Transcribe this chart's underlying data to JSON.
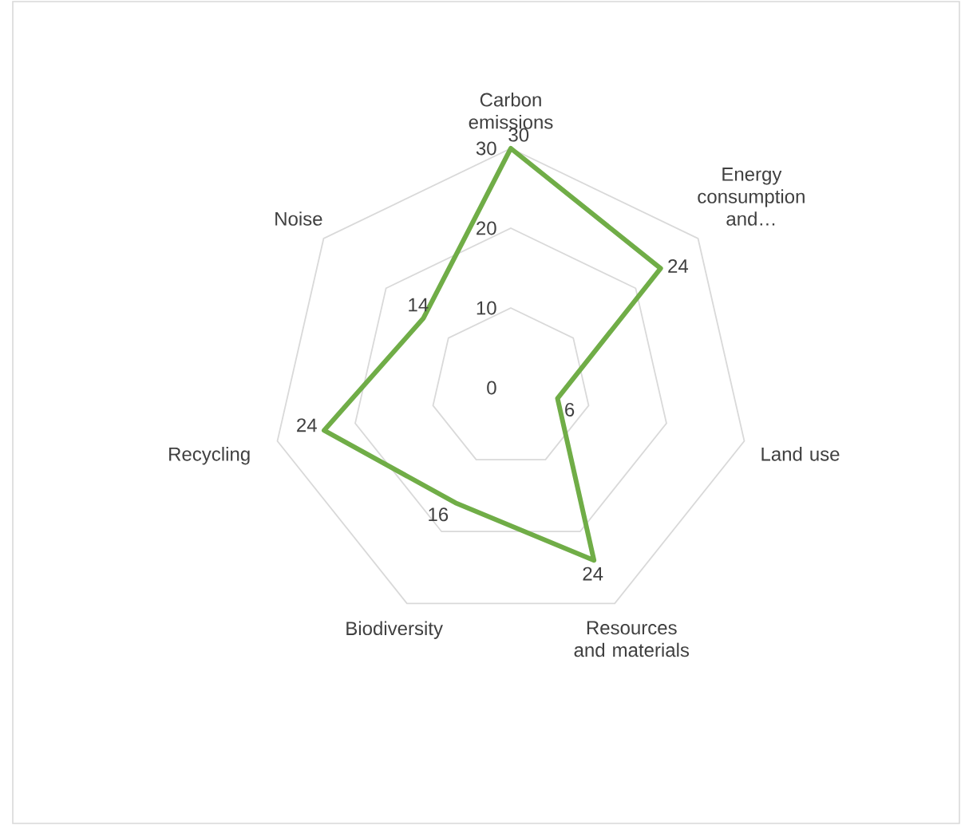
{
  "chart_data": {
    "type": "radar",
    "categories": [
      "Carbon emissions",
      "Energy consumption and…",
      "Land use",
      "Resources and materials",
      "Biodiversity",
      "Recycling",
      "Noise"
    ],
    "values": [
      30,
      24,
      6,
      24,
      16,
      24,
      14
    ],
    "color": "#70ad47",
    "ylim": [
      0,
      30
    ],
    "yticks": [
      0,
      10,
      20,
      30
    ],
    "grid": true,
    "data_labels": true,
    "marker": "none"
  }
}
